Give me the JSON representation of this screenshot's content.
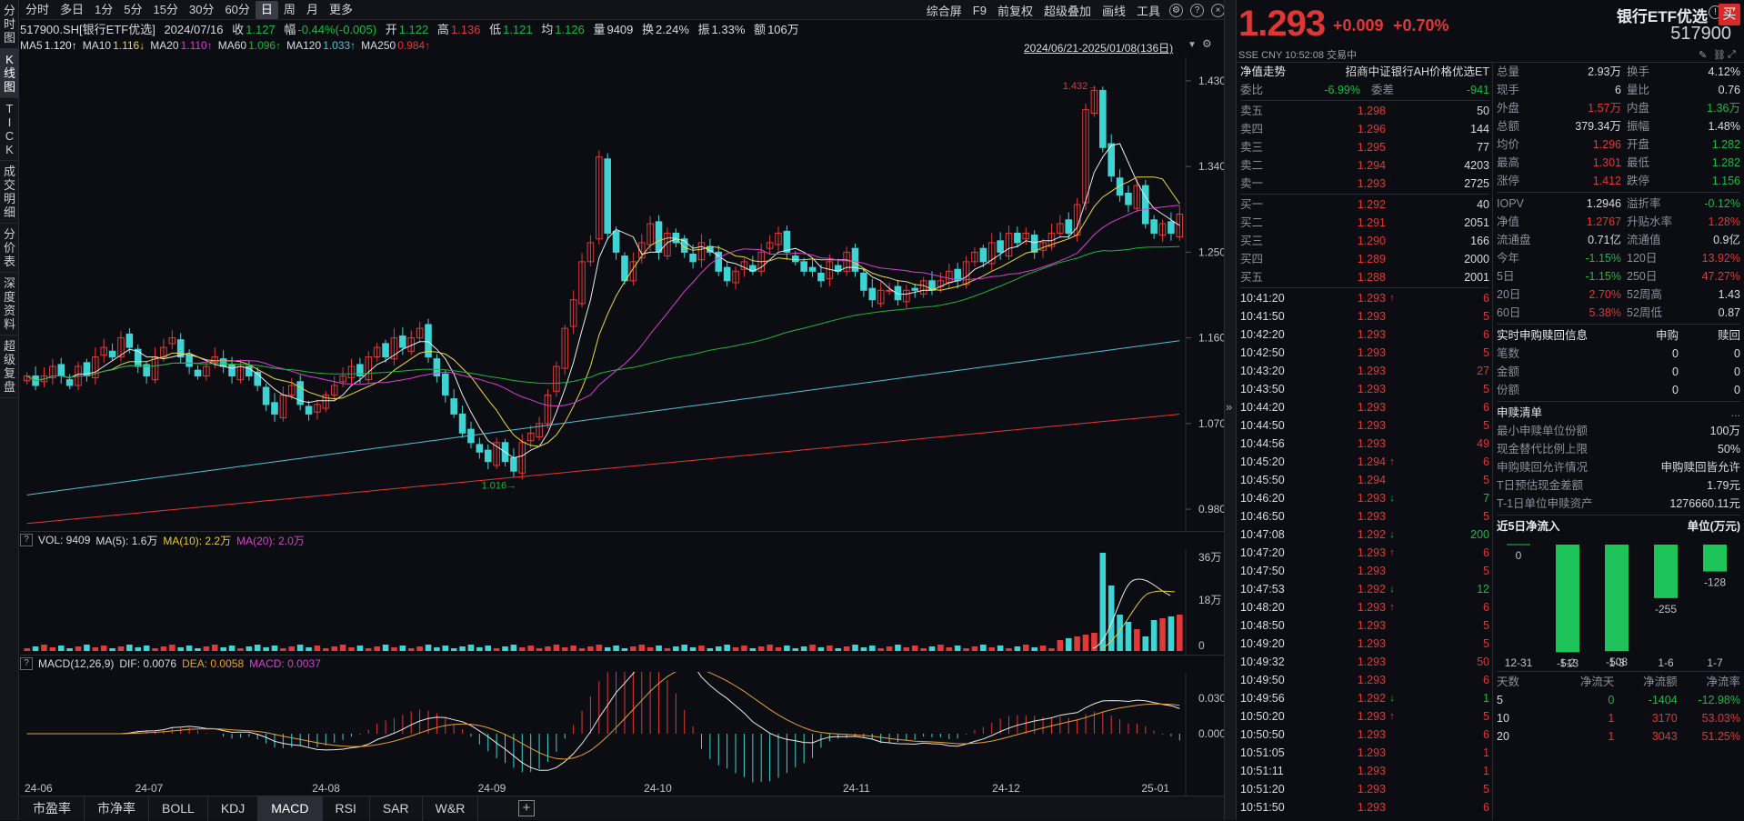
{
  "left_tabs": [
    {
      "label": "分时图"
    },
    {
      "label": "K线图"
    },
    {
      "label": "TICK"
    },
    {
      "label": "成交明细"
    },
    {
      "label": "分价表"
    },
    {
      "label": "深度资料"
    },
    {
      "label": "超级复盘"
    }
  ],
  "periods": [
    "分时",
    "多日",
    "1分",
    "5分",
    "15分",
    "30分",
    "60分",
    "日",
    "周",
    "月",
    "更多"
  ],
  "toolbar": {
    "fullscreen": "综合屏",
    "f9": "F9",
    "adjust": "前复权",
    "overlay": "超级叠加",
    "draw": "画线",
    "tools": "工具"
  },
  "info": {
    "code": "517900.SH[银行ETF优选]",
    "date": "2024/07/16",
    "close_label": "收",
    "close": "1.127",
    "chg_label": "幅",
    "chg": "-0.44%(-0.005)",
    "open_label": "开",
    "open": "1.122",
    "high_label": "高",
    "high": "1.136",
    "low_label": "低",
    "low": "1.121",
    "avg_label": "均",
    "avg": "1.126",
    "vol_label": "量",
    "vol": "9409",
    "turn_label": "换",
    "turn": "2.24%",
    "amp_label": "振",
    "amp": "1.33%",
    "amt_label": "额",
    "amt": "106万"
  },
  "ma": [
    {
      "label": "MA5",
      "value": "1.120↑",
      "color": "#e9e9e9"
    },
    {
      "label": "MA10",
      "value": "1.116↓",
      "color": "#e8d838"
    },
    {
      "label": "MA20",
      "value": "1.110↑",
      "color": "#d93ed0"
    },
    {
      "label": "MA60",
      "value": "1.096↑",
      "color": "#1db53a"
    },
    {
      "label": "MA120",
      "value": "1.033↑",
      "color": "#4fc1d3"
    },
    {
      "label": "MA250",
      "value": "0.984↑",
      "color": "#e23838"
    }
  ],
  "range_label": "2024/06/21-2025/01/08(136日)",
  "chart_data": {
    "type": "candlestick",
    "price_axis": [
      "1.430",
      "1.340",
      "1.250",
      "1.160",
      "1.070",
      "0.980"
    ],
    "max_label": "1.432",
    "min_label": "1.016",
    "months": [
      "24-06",
      "24-07",
      "24-08",
      "24-09",
      "24-10",
      "24-11",
      "24-12",
      "25-01"
    ],
    "closes": [
      1.12,
      1.11,
      1.12,
      1.13,
      1.12,
      1.11,
      1.13,
      1.12,
      1.14,
      1.15,
      1.14,
      1.16,
      1.15,
      1.13,
      1.12,
      1.14,
      1.15,
      1.16,
      1.14,
      1.13,
      1.12,
      1.13,
      1.14,
      1.13,
      1.12,
      1.13,
      1.12,
      1.11,
      1.09,
      1.08,
      1.1,
      1.11,
      1.09,
      1.08,
      1.09,
      1.1,
      1.11,
      1.12,
      1.13,
      1.12,
      1.14,
      1.15,
      1.14,
      1.16,
      1.15,
      1.16,
      1.17,
      1.14,
      1.12,
      1.1,
      1.08,
      1.06,
      1.05,
      1.04,
      1.03,
      1.05,
      1.03,
      1.02,
      1.05,
      1.06,
      1.07,
      1.1,
      1.13,
      1.17,
      1.2,
      1.24,
      1.26,
      1.35,
      1.27,
      1.25,
      1.22,
      1.24,
      1.26,
      1.28,
      1.25,
      1.27,
      1.26,
      1.25,
      1.24,
      1.26,
      1.25,
      1.23,
      1.22,
      1.23,
      1.24,
      1.23,
      1.25,
      1.26,
      1.27,
      1.25,
      1.24,
      1.23,
      1.23,
      1.22,
      1.24,
      1.23,
      1.25,
      1.23,
      1.21,
      1.2,
      1.21,
      1.21,
      1.2,
      1.21,
      1.21,
      1.22,
      1.21,
      1.22,
      1.23,
      1.22,
      1.24,
      1.25,
      1.24,
      1.26,
      1.25,
      1.27,
      1.26,
      1.27,
      1.25,
      1.26,
      1.27,
      1.28,
      1.27,
      1.3,
      1.4,
      1.42,
      1.36,
      1.33,
      1.31,
      1.3,
      1.32,
      1.28,
      1.27,
      1.28,
      1.27,
      1.29
    ]
  },
  "vol_hdr": {
    "vol": "VOL: 9409",
    "ma5": "MA(5): 1.6万",
    "ma10": "MA(10): 2.2万",
    "ma20": "MA(20): 2.0万",
    "axis": [
      "36万",
      "18万",
      "0"
    ]
  },
  "macd_hdr": {
    "title": "MACD(12,26,9)",
    "dif": "DIF: 0.0076",
    "dea": "DEA: 0.0058",
    "macd": "MACD: 0.0037",
    "axis": [
      "0.030",
      "0.000"
    ]
  },
  "bottom_tabs": [
    "市盈率",
    "市净率",
    "BOLL",
    "KDJ",
    "MACD",
    "RSI",
    "SAR",
    "W&R"
  ],
  "quote": {
    "price": "1.293",
    "change": "+0.009",
    "pct": "+0.70%",
    "name": "银行ETF优选",
    "code": "517900",
    "buy": "买",
    "meta": "SSE  CNY  10:52:08  交易中"
  },
  "nav_title": "净值走势",
  "nav_desc": "招商中证银行AH价格优选ET",
  "weibi": {
    "l1": "委比",
    "v1": "-6.99%",
    "l2": "委差",
    "v2": "-941"
  },
  "asks": [
    {
      "l": "卖五",
      "p": "1.298",
      "v": "50"
    },
    {
      "l": "卖四",
      "p": "1.296",
      "v": "144"
    },
    {
      "l": "卖三",
      "p": "1.295",
      "v": "77"
    },
    {
      "l": "卖二",
      "p": "1.294",
      "v": "4203"
    },
    {
      "l": "卖一",
      "p": "1.293",
      "v": "2725"
    }
  ],
  "bids": [
    {
      "l": "买一",
      "p": "1.292",
      "v": "40"
    },
    {
      "l": "买二",
      "p": "1.291",
      "v": "2051"
    },
    {
      "l": "买三",
      "p": "1.290",
      "v": "166"
    },
    {
      "l": "买四",
      "p": "1.289",
      "v": "2000"
    },
    {
      "l": "买五",
      "p": "1.288",
      "v": "2001"
    }
  ],
  "ticks": [
    {
      "t": "10:41:20",
      "p": "1.293",
      "a": "↑",
      "v": "6",
      "c": "up"
    },
    {
      "t": "10:41:50",
      "p": "1.293",
      "a": "",
      "v": "5",
      "c": "up"
    },
    {
      "t": "10:42:20",
      "p": "1.293",
      "a": "",
      "v": "6",
      "c": "up"
    },
    {
      "t": "10:42:50",
      "p": "1.293",
      "a": "",
      "v": "5",
      "c": "up"
    },
    {
      "t": "10:43:20",
      "p": "1.293",
      "a": "",
      "v": "27",
      "c": "up"
    },
    {
      "t": "10:43:50",
      "p": "1.293",
      "a": "",
      "v": "5",
      "c": "up"
    },
    {
      "t": "10:44:20",
      "p": "1.293",
      "a": "",
      "v": "6",
      "c": "up"
    },
    {
      "t": "10:44:50",
      "p": "1.293",
      "a": "",
      "v": "5",
      "c": "up"
    },
    {
      "t": "10:44:56",
      "p": "1.293",
      "a": "",
      "v": "49",
      "c": "up"
    },
    {
      "t": "10:45:20",
      "p": "1.294",
      "a": "↑",
      "v": "6",
      "c": "up"
    },
    {
      "t": "10:45:50",
      "p": "1.294",
      "a": "",
      "v": "5",
      "c": "up"
    },
    {
      "t": "10:46:20",
      "p": "1.293",
      "a": "↓",
      "v": "7",
      "c": "dn"
    },
    {
      "t": "10:46:50",
      "p": "1.293",
      "a": "",
      "v": "5",
      "c": "up"
    },
    {
      "t": "10:47:08",
      "p": "1.292",
      "a": "↓",
      "v": "200",
      "c": "dn"
    },
    {
      "t": "10:47:20",
      "p": "1.293",
      "a": "↑",
      "v": "6",
      "c": "up"
    },
    {
      "t": "10:47:50",
      "p": "1.293",
      "a": "",
      "v": "5",
      "c": "up"
    },
    {
      "t": "10:47:53",
      "p": "1.292",
      "a": "↓",
      "v": "12",
      "c": "dn"
    },
    {
      "t": "10:48:20",
      "p": "1.293",
      "a": "↑",
      "v": "6",
      "c": "up"
    },
    {
      "t": "10:48:50",
      "p": "1.293",
      "a": "",
      "v": "5",
      "c": "up"
    },
    {
      "t": "10:49:20",
      "p": "1.293",
      "a": "",
      "v": "5",
      "c": "up"
    },
    {
      "t": "10:49:32",
      "p": "1.293",
      "a": "",
      "v": "50",
      "c": "up"
    },
    {
      "t": "10:49:50",
      "p": "1.293",
      "a": "",
      "v": "6",
      "c": "up"
    },
    {
      "t": "10:49:56",
      "p": "1.292",
      "a": "↓",
      "v": "1",
      "c": "dn"
    },
    {
      "t": "10:50:20",
      "p": "1.293",
      "a": "↑",
      "v": "5",
      "c": "up"
    },
    {
      "t": "10:50:50",
      "p": "1.293",
      "a": "",
      "v": "6",
      "c": "up"
    },
    {
      "t": "10:51:05",
      "p": "1.293",
      "a": "",
      "v": "1",
      "c": "up"
    },
    {
      "t": "10:51:11",
      "p": "1.293",
      "a": "",
      "v": "1",
      "c": "up"
    },
    {
      "t": "10:51:20",
      "p": "1.293",
      "a": "",
      "v": "5",
      "c": "up"
    },
    {
      "t": "10:51:50",
      "p": "1.293",
      "a": "",
      "v": "6",
      "c": "up"
    }
  ],
  "stats": [
    {
      "l1": "总量",
      "v1": "2.93万",
      "c1": "wt",
      "l2": "换手",
      "v2": "4.12%",
      "c2": "wt"
    },
    {
      "l1": "现手",
      "v1": "6",
      "c1": "wt",
      "l2": "量比",
      "v2": "0.76",
      "c2": "wt"
    },
    {
      "l1": "外盘",
      "v1": "1.57万",
      "c1": "up",
      "l2": "内盘",
      "v2": "1.36万",
      "c2": "dn"
    },
    {
      "l1": "总额",
      "v1": "379.34万",
      "c1": "wt",
      "l2": "振幅",
      "v2": "1.48%",
      "c2": "wt"
    },
    {
      "l1": "均价",
      "v1": "1.296",
      "c1": "up",
      "l2": "开盘",
      "v2": "1.282",
      "c2": "dn"
    },
    {
      "l1": "最高",
      "v1": "1.301",
      "c1": "up",
      "l2": "最低",
      "v2": "1.282",
      "c2": "dn"
    },
    {
      "l1": "涨停",
      "v1": "1.412",
      "c1": "up",
      "l2": "跌停",
      "v2": "1.156",
      "c2": "dn"
    }
  ],
  "stats2": [
    {
      "l1": "IOPV",
      "v1": "1.2946",
      "c1": "wt",
      "l2": "溢折率",
      "v2": "-0.12%",
      "c2": "dn"
    },
    {
      "l1": "净值",
      "v1": "1.2767",
      "c1": "up",
      "l2": "升贴水率",
      "v2": "1.28%",
      "c2": "up"
    },
    {
      "l1": "流通盘",
      "v1": "0.71亿",
      "c1": "wt",
      "l2": "流通值",
      "v2": "0.9亿",
      "c2": "wt"
    },
    {
      "l1": "今年",
      "v1": "-1.15%",
      "c1": "dn",
      "l2": "120日",
      "v2": "13.92%",
      "c2": "up"
    },
    {
      "l1": "5日",
      "v1": "-1.15%",
      "c1": "dn",
      "l2": "250日",
      "v2": "47.27%",
      "c2": "up"
    },
    {
      "l1": "20日",
      "v1": "2.70%",
      "c1": "up",
      "l2": "52周高",
      "v2": "1.43",
      "c2": "wt"
    },
    {
      "l1": "60日",
      "v1": "5.38%",
      "c1": "up",
      "l2": "52周低",
      "v2": "0.87",
      "c2": "wt"
    }
  ],
  "redeem": {
    "title": "实时申购赎回信息",
    "col1": "申购",
    "col2": "赎回",
    "rows": [
      {
        "l": "笔数",
        "a": "0",
        "b": "0"
      },
      {
        "l": "金额",
        "a": "0",
        "b": "0"
      },
      {
        "l": "份额",
        "a": "0",
        "b": "0"
      }
    ]
  },
  "sglist": {
    "title": "申赎清单",
    "more": "...",
    "rows": [
      {
        "l": "最小申赎单位份额",
        "v": "100万"
      },
      {
        "l": "现金替代比例上限",
        "v": "50%"
      },
      {
        "l": "申购赎回允许情况",
        "v": "申购赎回皆允许"
      },
      {
        "l": "T日预估现金差额",
        "v": "1.79元"
      },
      {
        "l": "T-1日单位申赎资产",
        "v": "1276660.11元"
      }
    ]
  },
  "flow": {
    "title": "近5日净流入",
    "unit": "单位(万元)",
    "bars": [
      {
        "d": "12-31",
        "v": 0
      },
      {
        "d": "1-2",
        "v": -513
      },
      {
        "d": "1-3",
        "v": -508
      },
      {
        "d": "1-6",
        "v": -255
      },
      {
        "d": "1-7",
        "v": -128
      }
    ]
  },
  "flow_tbl": {
    "h": [
      "天数",
      "净流天",
      "净流额",
      "净流率"
    ],
    "rows": [
      {
        "a": "5",
        "b": "0",
        "c": "-1404",
        "d": "-12.98%",
        "cb": "dn",
        "cc": "dn",
        "cd": "dn"
      },
      {
        "a": "10",
        "b": "1",
        "c": "3170",
        "d": "53.03%",
        "cb": "up",
        "cc": "up",
        "cd": "up"
      },
      {
        "a": "20",
        "b": "1",
        "c": "3043",
        "d": "51.25%",
        "cb": "up",
        "cc": "up",
        "cd": "up"
      }
    ]
  }
}
